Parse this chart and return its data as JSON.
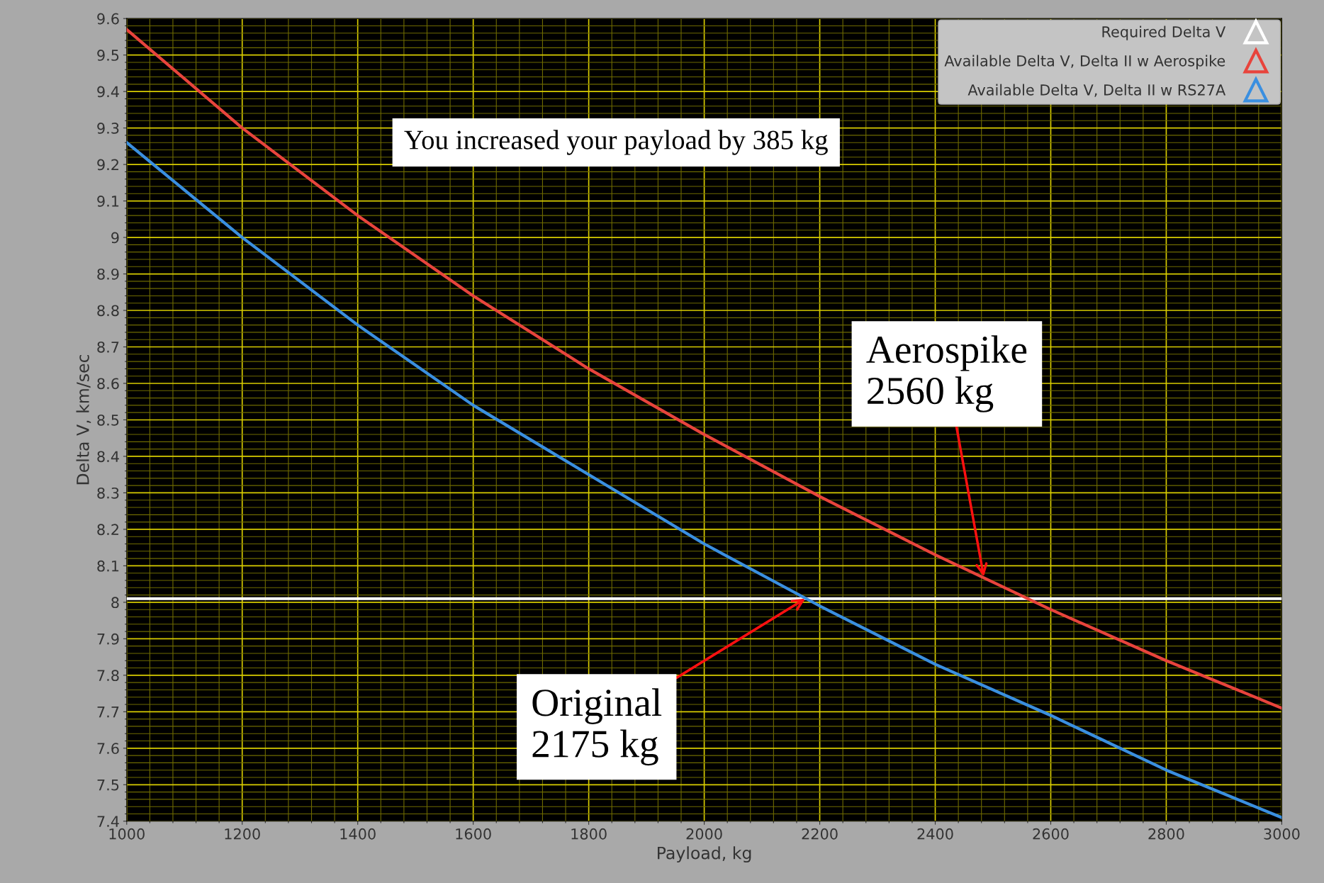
{
  "chart_data": {
    "type": "line",
    "xlabel": "Payload, kg",
    "ylabel": "Delta V, km/sec",
    "xlim": [
      1000,
      3000
    ],
    "xticks": [
      1000,
      {
        "value": 1040,
        "label": null
      },
      {
        "value": 1080,
        "label": null
      },
      {
        "value": 1120,
        "label": null
      },
      {
        "value": 1160,
        "label": null
      },
      1200,
      {
        "value": 1240,
        "label": null
      },
      {
        "value": 1280,
        "label": null
      },
      {
        "value": 1320,
        "label": null
      },
      {
        "value": 1360,
        "label": null
      },
      1400,
      {
        "value": 1440,
        "label": null
      },
      {
        "value": 1480,
        "label": null
      },
      {
        "value": 1520,
        "label": null
      },
      {
        "value": 1560,
        "label": null
      },
      1600,
      {
        "value": 1640,
        "label": null
      },
      {
        "value": 1680,
        "label": null
      },
      {
        "value": 1720,
        "label": null
      },
      {
        "value": 1760,
        "label": null
      },
      1800,
      {
        "value": 1840,
        "label": null
      },
      {
        "value": 1880,
        "label": null
      },
      {
        "value": 1920,
        "label": null
      },
      {
        "value": 1960,
        "label": null
      },
      2000,
      {
        "value": 2040,
        "label": null
      },
      {
        "value": 2080,
        "label": null
      },
      {
        "value": 2120,
        "label": null
      },
      {
        "value": 2160,
        "label": null
      },
      2200,
      {
        "value": 2240,
        "label": null
      },
      {
        "value": 2280,
        "label": null
      },
      {
        "value": 2320,
        "label": null
      },
      {
        "value": 2360,
        "label": null
      },
      2400,
      {
        "value": 2440,
        "label": null
      },
      {
        "value": 2480,
        "label": null
      },
      {
        "value": 2520,
        "label": null
      },
      {
        "value": 2560,
        "label": null
      },
      2600,
      {
        "value": 2640,
        "label": null
      },
      {
        "value": 2680,
        "label": null
      },
      {
        "value": 2720,
        "label": null
      },
      {
        "value": 2760,
        "label": null
      },
      2800,
      {
        "value": 2840,
        "label": null
      },
      {
        "value": 2880,
        "label": null
      },
      {
        "value": 2920,
        "label": null
      },
      {
        "value": 2960,
        "label": null
      },
      3000
    ],
    "ylim": [
      7.4,
      9.6
    ],
    "yticks": [
      7.4,
      {
        "value": 7.42,
        "label": null
      },
      {
        "value": 7.44,
        "label": null
      },
      {
        "value": 7.46,
        "label": null
      },
      {
        "value": 7.48,
        "label": null
      },
      7.5,
      {
        "value": 7.52,
        "label": null
      },
      {
        "value": 7.54,
        "label": null
      },
      {
        "value": 7.56,
        "label": null
      },
      {
        "value": 7.58,
        "label": null
      },
      7.6,
      {
        "value": 7.62,
        "label": null
      },
      {
        "value": 7.64,
        "label": null
      },
      {
        "value": 7.66,
        "label": null
      },
      {
        "value": 7.68,
        "label": null
      },
      7.7,
      {
        "value": 7.72,
        "label": null
      },
      {
        "value": 7.74,
        "label": null
      },
      {
        "value": 7.76,
        "label": null
      },
      {
        "value": 7.78,
        "label": null
      },
      7.8,
      {
        "value": 7.82,
        "label": null
      },
      {
        "value": 7.84,
        "label": null
      },
      {
        "value": 7.86,
        "label": null
      },
      {
        "value": 7.88,
        "label": null
      },
      7.9,
      {
        "value": 7.92,
        "label": null
      },
      {
        "value": 7.94,
        "label": null
      },
      {
        "value": 7.96,
        "label": null
      },
      {
        "value": 7.98,
        "label": null
      },
      8,
      {
        "value": 8.02,
        "label": null
      },
      {
        "value": 8.04,
        "label": null
      },
      {
        "value": 8.06,
        "label": null
      },
      {
        "value": 8.08,
        "label": null
      },
      8.1,
      {
        "value": 8.12,
        "label": null
      },
      {
        "value": 8.14,
        "label": null
      },
      {
        "value": 8.16,
        "label": null
      },
      {
        "value": 8.18,
        "label": null
      },
      8.2,
      {
        "value": 8.22,
        "label": null
      },
      {
        "value": 8.24,
        "label": null
      },
      {
        "value": 8.26,
        "label": null
      },
      {
        "value": 8.28,
        "label": null
      },
      8.3,
      {
        "value": 8.32,
        "label": null
      },
      {
        "value": 8.34,
        "label": null
      },
      {
        "value": 8.36,
        "label": null
      },
      {
        "value": 8.38,
        "label": null
      },
      8.4,
      {
        "value": 8.42,
        "label": null
      },
      {
        "value": 8.44,
        "label": null
      },
      {
        "value": 8.46,
        "label": null
      },
      {
        "value": 8.48,
        "label": null
      },
      8.5,
      {
        "value": 8.52,
        "label": null
      },
      {
        "value": 8.54,
        "label": null
      },
      {
        "value": 8.56,
        "label": null
      },
      {
        "value": 8.58,
        "label": null
      },
      8.6,
      {
        "value": 8.62,
        "label": null
      },
      {
        "value": 8.64,
        "label": null
      },
      {
        "value": 8.66,
        "label": null
      },
      {
        "value": 8.68,
        "label": null
      },
      8.7,
      {
        "value": 8.72,
        "label": null
      },
      {
        "value": 8.74,
        "label": null
      },
      {
        "value": 8.76,
        "label": null
      },
      {
        "value": 8.78,
        "label": null
      },
      8.8,
      {
        "value": 8.82,
        "label": null
      },
      {
        "value": 8.84,
        "label": null
      },
      {
        "value": 8.86,
        "label": null
      },
      {
        "value": 8.88,
        "label": null
      },
      8.9,
      {
        "value": 8.92,
        "label": null
      },
      {
        "value": 8.94,
        "label": null
      },
      {
        "value": 8.96,
        "label": null
      },
      {
        "value": 8.98,
        "label": null
      },
      9,
      {
        "value": 9.02,
        "label": null
      },
      {
        "value": 9.04,
        "label": null
      },
      {
        "value": 9.06,
        "label": null
      },
      {
        "value": 9.08,
        "label": null
      },
      9.1,
      {
        "value": 9.12,
        "label": null
      },
      {
        "value": 9.14,
        "label": null
      },
      {
        "value": 9.16,
        "label": null
      },
      {
        "value": 9.18,
        "label": null
      },
      9.2,
      {
        "value": 9.22,
        "label": null
      },
      {
        "value": 9.24,
        "label": null
      },
      {
        "value": 9.26,
        "label": null
      },
      {
        "value": 9.28,
        "label": null
      },
      9.3,
      {
        "value": 9.32,
        "label": null
      },
      {
        "value": 9.34,
        "label": null
      },
      {
        "value": 9.36,
        "label": null
      },
      {
        "value": 9.38,
        "label": null
      },
      9.4,
      {
        "value": 9.42,
        "label": null
      },
      {
        "value": 9.44,
        "label": null
      },
      {
        "value": 9.46,
        "label": null
      },
      {
        "value": 9.48,
        "label": null
      },
      9.5,
      {
        "value": 9.52,
        "label": null
      },
      {
        "value": 9.54,
        "label": null
      },
      {
        "value": 9.56,
        "label": null
      },
      {
        "value": 9.58,
        "label": null
      },
      9.6
    ],
    "grid": true,
    "legend": "top right",
    "line_style": "solid",
    "marker": "none",
    "series": [
      {
        "name": "Required Delta V",
        "color": "#ffffff",
        "x": [
          1000,
          3000
        ],
        "values": [
          8.01,
          8.01
        ]
      },
      {
        "name": "Available Delta V, Delta II w Aerospike",
        "color": "#e8443c",
        "x": [
          1000,
          1200,
          1400,
          1600,
          1800,
          2000,
          2200,
          2400,
          2600,
          2800,
          3000
        ],
        "values": [
          9.57,
          9.3,
          9.06,
          8.84,
          8.64,
          8.46,
          8.29,
          8.13,
          7.98,
          7.84,
          7.71
        ]
      },
      {
        "name": "Available Delta V, Delta II w RS27A",
        "color": "#3a8fe0",
        "x": [
          1000,
          1200,
          1400,
          1600,
          1800,
          2000,
          2200,
          2400,
          2600,
          2800,
          3000
        ],
        "values": [
          9.26,
          9.0,
          8.76,
          8.54,
          8.35,
          8.16,
          7.99,
          7.83,
          7.69,
          7.54,
          7.41
        ]
      }
    ],
    "annotations": [
      "You increased your payload by 385 kg",
      {
        "text": "Aerospike\n2560 kg",
        "x": 2484,
        "y": 8.07
      },
      {
        "text": "Original\n2175 kg",
        "x": 2175,
        "y": 8.01
      }
    ]
  }
}
